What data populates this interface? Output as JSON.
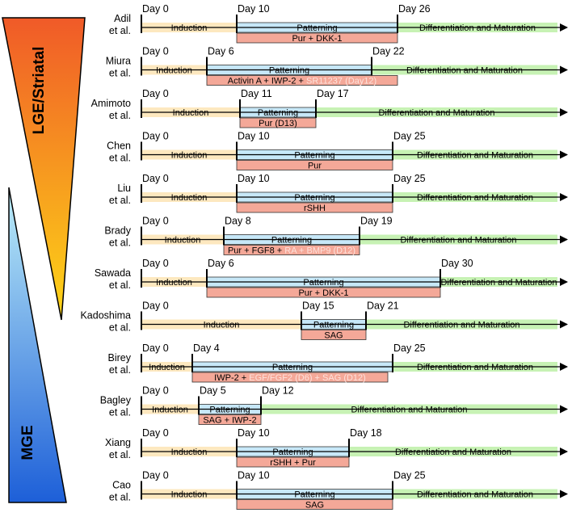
{
  "gradients": {
    "lge": {
      "label": "LGE/Striatal",
      "top_color": "#f05a28",
      "bottom_color": "#fdd617"
    },
    "mge": {
      "label": "MGE",
      "top_color": "#bdeef8",
      "bottom_color": "#1d5fd8"
    }
  },
  "colors": {
    "induction": "#fde8bf",
    "patterning": "#c7e8f8",
    "differentiation": "#c7f2b4",
    "molecule_box": "#f4a898",
    "highlight_text": "#fde2dc"
  },
  "protocols": [
    {
      "author": [
        "Adil",
        "et al."
      ],
      "days": [
        "Day 0",
        "Day 10",
        "Day 26"
      ],
      "induction_label": "Induction",
      "patterning_label": "Patterning",
      "diff_label": "Differentiation and Maturation",
      "molecules": [
        {
          "text": "Pur + DKK-1",
          "hl": false
        }
      ]
    },
    {
      "author": [
        "Miura",
        "et al."
      ],
      "days": [
        "Day 0",
        "Day 6",
        "Day 22"
      ],
      "induction_label": "Induction",
      "patterning_label": "Patterning",
      "diff_label": "Differentiation and Maturation",
      "molecules": [
        {
          "text": "Activin A + IWP-2 + ",
          "hl": false
        },
        {
          "text": "SR11237 (Day12)",
          "hl": true
        }
      ]
    },
    {
      "author": [
        "Amimoto",
        "et al."
      ],
      "days": [
        "Day 0",
        "Day 11",
        "Day 17"
      ],
      "induction_label": "Induction",
      "patterning_label": "Patterning",
      "diff_label": "Differentiation and Maturation",
      "molecules": [
        {
          "text": "Pur (D13)",
          "hl": false
        }
      ]
    },
    {
      "author": [
        "Chen",
        "et al."
      ],
      "days": [
        "Day 0",
        "Day 10",
        "Day 25"
      ],
      "induction_label": "Induction",
      "patterning_label": "Patterning",
      "diff_label": "Differentiation and Maturation",
      "molecules": [
        {
          "text": "Pur",
          "hl": false
        }
      ]
    },
    {
      "author": [
        "Liu",
        "et al."
      ],
      "days": [
        "Day 0",
        "Day 10",
        "Day 25"
      ],
      "induction_label": "Induction",
      "patterning_label": "Patterning",
      "diff_label": "Differentiation and Maturation",
      "molecules": [
        {
          "text": "rSHH",
          "hl": false
        }
      ]
    },
    {
      "author": [
        "Brady",
        "et al."
      ],
      "days": [
        "Day 0",
        "Day 8",
        "Day 19"
      ],
      "induction_label": "Induction",
      "patterning_label": "Patterning",
      "diff_label": "Differentiation and Maturation",
      "molecules": [
        {
          "text": "Pur + FGF8 + ",
          "hl": false
        },
        {
          "text": "RA + BMP9 (D12)",
          "hl": true
        }
      ]
    },
    {
      "author": [
        "Sawada",
        "et al."
      ],
      "days": [
        "Day 0",
        "Day 6",
        "Day 30"
      ],
      "induction_label": "Induction",
      "patterning_label": "Patterning",
      "diff_label": "Differentiation and Maturation",
      "molecules": [
        {
          "text": "Pur + DKK-1",
          "hl": false
        }
      ]
    },
    {
      "author": [
        "Kadoshima",
        "et al."
      ],
      "days": [
        "Day 0",
        "Day 15",
        "Day 21"
      ],
      "induction_label": "Induction",
      "patterning_label": "Patterning",
      "diff_label": "Differentiation and Maturation",
      "molecules": [
        {
          "text": "SAG",
          "hl": false
        }
      ]
    },
    {
      "author": [
        "Birey",
        "et al."
      ],
      "days": [
        "Day 0",
        "Day 4",
        "Day 25"
      ],
      "induction_label": "Induction",
      "patterning_label": "Patterning",
      "diff_label": "Differentiation and Maturation",
      "molecules": [
        {
          "text": "IWP-2 + ",
          "hl": false
        },
        {
          "text": "EGF/FGF2 (D6) + SAG (D12)",
          "hl": true
        }
      ]
    },
    {
      "author": [
        "Bagley",
        "et al."
      ],
      "days": [
        "Day 0",
        "Day 5",
        "Day 12"
      ],
      "induction_label": "Induction",
      "patterning_label": "Patterning",
      "diff_label": "Differentiation and Maturation",
      "molecules": [
        {
          "text": "SAG + IWP-2",
          "hl": false
        }
      ]
    },
    {
      "author": [
        "Xiang",
        "et al."
      ],
      "days": [
        "Day 0",
        "Day 10",
        "Day 18"
      ],
      "induction_label": "Induction",
      "patterning_label": "Patterning",
      "diff_label": "Differentiation and Maturation",
      "molecules": [
        {
          "text": "rSHH + Pur",
          "hl": false
        }
      ]
    },
    {
      "author": [
        "Cao",
        "et al."
      ],
      "days": [
        "Day 0",
        "Day 10",
        "Day 25"
      ],
      "induction_label": "Induction",
      "patterning_label": "Patterning",
      "diff_label": "Differentiation and Maturation",
      "molecules": [
        {
          "text": "SAG",
          "hl": false
        }
      ]
    }
  ]
}
